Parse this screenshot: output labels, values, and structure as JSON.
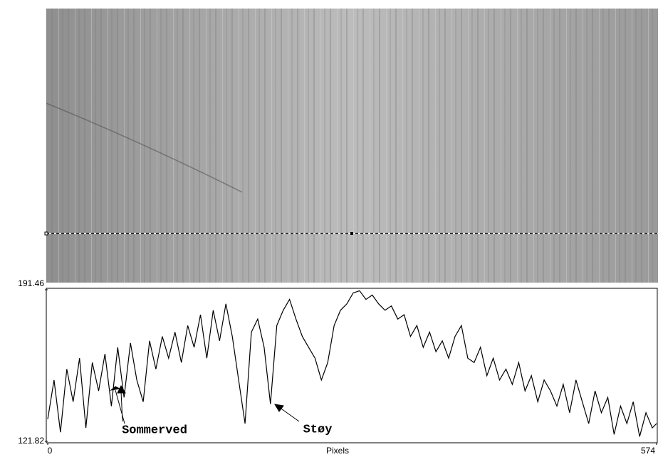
{
  "chart_data": {
    "type": "line",
    "xlabel": "Pixels",
    "annotations": [
      "Sommerved",
      "Støy"
    ],
    "x": [
      0,
      6,
      12,
      18,
      24,
      30,
      36,
      42,
      48,
      54,
      60,
      66,
      72,
      78,
      84,
      90,
      96,
      102,
      108,
      114,
      120,
      126,
      132,
      138,
      144,
      150,
      156,
      162,
      168,
      174,
      180,
      186,
      192,
      198,
      204,
      210,
      216,
      222,
      228,
      234,
      240,
      246,
      252,
      258,
      264,
      270,
      276,
      282,
      288,
      294,
      300,
      306,
      312,
      318,
      324,
      330,
      336,
      342,
      348,
      354,
      360,
      366,
      372,
      378,
      384,
      390,
      396,
      402,
      408,
      414,
      420,
      426,
      432,
      438,
      444,
      450,
      456,
      462,
      468,
      474,
      480,
      486,
      492,
      498,
      504,
      510,
      516,
      522,
      528,
      534,
      540,
      546,
      552,
      558,
      564,
      570,
      574
    ],
    "series": [
      {
        "color": "#000000",
        "values": [
          132,
          150,
          126,
          155,
          140,
          160,
          128,
          158,
          145,
          162,
          138,
          165,
          142,
          167,
          150,
          140,
          168,
          155,
          170,
          160,
          172,
          158,
          175,
          165,
          180,
          160,
          182,
          168,
          185,
          170,
          150,
          130,
          172,
          178,
          165,
          139,
          175,
          182,
          187,
          178,
          170,
          165,
          160,
          150,
          158,
          175,
          182,
          185,
          190,
          191,
          187,
          189,
          185,
          182,
          184,
          178,
          180,
          170,
          175,
          165,
          172,
          163,
          168,
          160,
          170,
          175,
          160,
          158,
          165,
          152,
          160,
          150,
          155,
          148,
          158,
          145,
          152,
          140,
          150,
          145,
          138,
          148,
          135,
          150,
          140,
          130,
          145,
          135,
          142,
          125,
          138,
          130,
          140,
          124,
          135,
          128,
          130
        ]
      }
    ],
    "xlim": [
      0,
      574
    ],
    "xticks": [
      0,
      574
    ],
    "ylim": [
      121.82,
      191.46
    ],
    "yticks": [
      191.46,
      121.82
    ]
  }
}
